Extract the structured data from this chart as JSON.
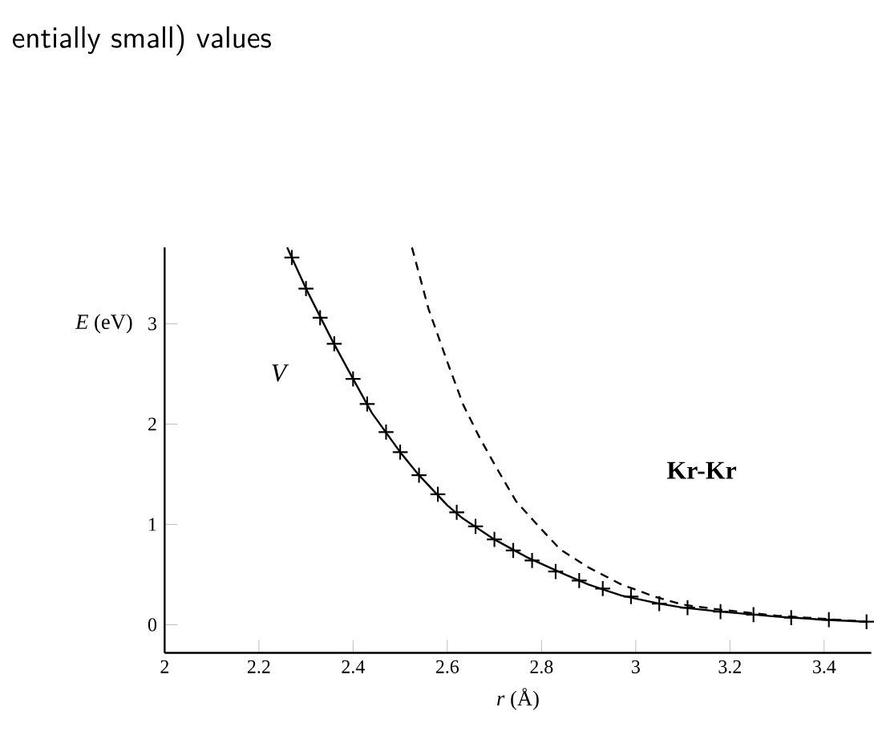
{
  "chart_data": {
    "type": "line",
    "xlabel": "*r* (Å)",
    "ylabel": "*E* (eV)",
    "xlim": [
      2,
      3.5
    ],
    "ylim": [
      -0.28,
      3.76
    ],
    "xticks": [
      2,
      2.2,
      2.4,
      2.6,
      2.8,
      3,
      3.2,
      3.4
    ],
    "yticks": [
      0,
      1,
      2,
      3
    ],
    "series": [
      {
        "color": "#000000",
        "line_style": "solid",
        "marker": "none",
        "x": [
          2.26,
          2.3,
          2.356,
          2.4,
          2.44,
          2.5,
          2.54,
          2.6,
          2.63,
          2.7,
          2.77,
          2.85,
          2.9,
          2.97,
          3.05,
          3.1,
          3.18,
          3.3,
          3.4,
          3.49
        ],
        "values": [
          3.76,
          3.35,
          2.83,
          2.45,
          2.11,
          1.72,
          1.49,
          1.19,
          1.07,
          0.85,
          0.67,
          0.5,
          0.4,
          0.29,
          0.21,
          0.17,
          0.13,
          0.08,
          0.05,
          0.03
        ]
      },
      {
        "type": "scatter",
        "color": "#000000",
        "marker": "cross",
        "x": [
          2.27,
          2.3,
          2.33,
          2.36,
          2.4,
          2.43,
          2.47,
          2.5,
          2.54,
          2.58,
          2.62,
          2.66,
          2.7,
          2.74,
          2.78,
          2.83,
          2.88,
          2.93,
          2.99,
          3.05,
          3.11,
          3.18,
          3.25,
          3.33,
          3.41,
          3.49
        ],
        "values": [
          3.66,
          3.35,
          3.06,
          2.8,
          2.45,
          2.2,
          1.92,
          1.72,
          1.49,
          1.3,
          1.12,
          0.98,
          0.85,
          0.74,
          0.64,
          0.53,
          0.44,
          0.36,
          0.28,
          0.21,
          0.17,
          0.13,
          0.1,
          0.07,
          0.05,
          0.03
        ]
      },
      {
        "color": "#000000",
        "line_style": "dashed",
        "marker": "none",
        "x": [
          2.525,
          2.56,
          2.6,
          2.634,
          2.668,
          2.7,
          2.746,
          2.8,
          2.84,
          2.9,
          2.97,
          3.04,
          3.1,
          3.18,
          3.3,
          3.49
        ],
        "values": [
          3.76,
          3.15,
          2.62,
          2.19,
          1.87,
          1.6,
          1.23,
          0.95,
          0.75,
          0.57,
          0.4,
          0.28,
          0.2,
          0.15,
          0.09,
          0.03
        ]
      }
    ],
    "annotations": [
      "entially small) values",
      "*V*",
      "**Kr-Kr**"
    ],
    "grid": false
  }
}
